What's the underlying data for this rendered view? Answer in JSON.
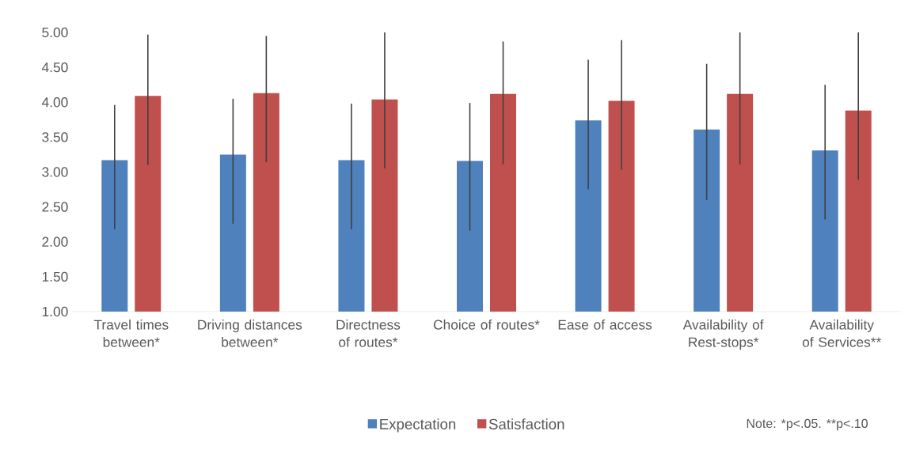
{
  "chart_data": {
    "type": "bar",
    "categories": [
      "Travel times between*",
      "Driving distances between*",
      "Directness of routes*",
      "Choice of routes*",
      "Ease of access",
      "Availability of Rest-stops*",
      "Availability of Services**"
    ],
    "series": [
      {
        "name": "Expectation",
        "color": "#4f81bd",
        "values": [
          3.17,
          3.25,
          3.17,
          3.16,
          3.74,
          3.61,
          3.31
        ],
        "errors": [
          [
            2.18,
            3.96
          ],
          [
            2.26,
            4.05
          ],
          [
            2.18,
            3.98
          ],
          [
            2.16,
            3.99
          ],
          [
            2.75,
            4.61
          ],
          [
            2.6,
            4.55
          ],
          [
            2.32,
            4.25
          ]
        ]
      },
      {
        "name": "Satisfaction",
        "color": "#c0504d",
        "values": [
          4.09,
          4.13,
          4.04,
          4.12,
          4.02,
          4.12,
          3.88
        ],
        "errors": [
          [
            3.1,
            4.97
          ],
          [
            3.14,
            4.95
          ],
          [
            3.05,
            5.0
          ],
          [
            3.11,
            4.87
          ],
          [
            3.03,
            4.89
          ],
          [
            3.11,
            5.0
          ],
          [
            2.89,
            5.0
          ]
        ]
      }
    ],
    "ylim": [
      1,
      5
    ],
    "yticks": [
      {
        "value": 1,
        "label": "1.00"
      },
      {
        "value": 1.5,
        "label": "1.50"
      },
      {
        "value": 2,
        "label": "2.00"
      },
      {
        "value": 2.5,
        "label": "2.50"
      },
      {
        "value": 3,
        "label": "3.00"
      },
      {
        "value": 3.5,
        "label": "3.50"
      },
      {
        "value": 4,
        "label": "4.00"
      },
      {
        "value": 4.5,
        "label": "4.50"
      },
      {
        "value": 5,
        "label": "5.00"
      }
    ],
    "legend": "bottom",
    "annotations": [
      "Note: *p<.05. **p<.10"
    ]
  }
}
